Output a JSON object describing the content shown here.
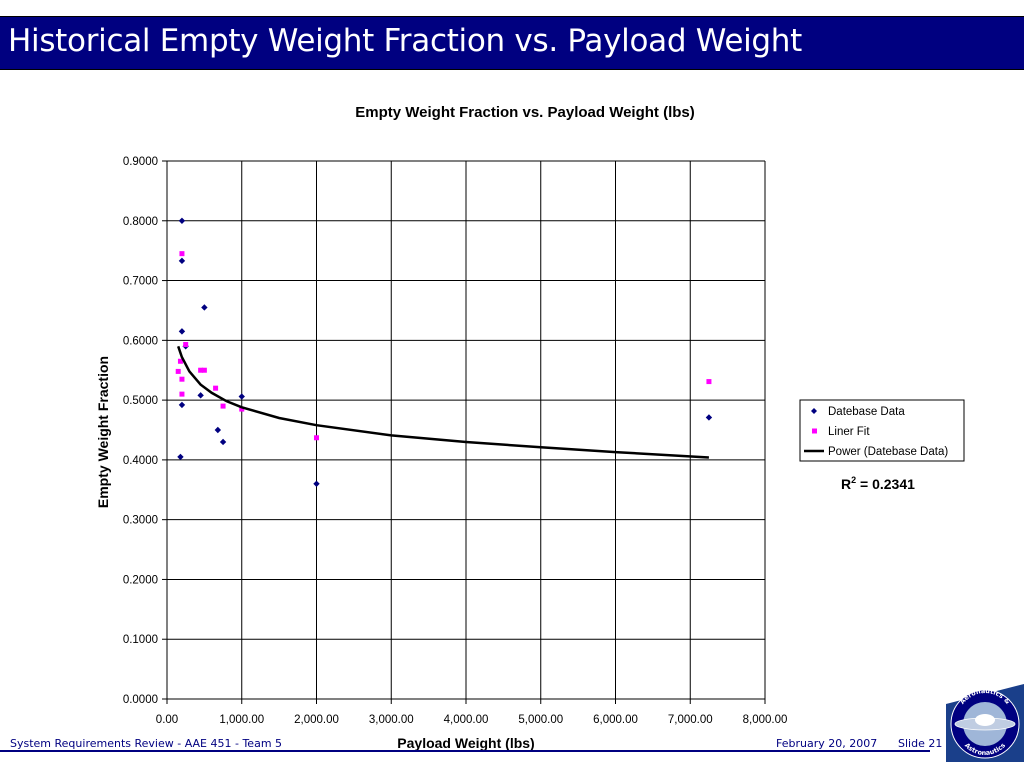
{
  "slide": {
    "title": "Historical Empty Weight Fraction vs. Payload Weight",
    "footer_left": "System Requirements Review - AAE 451 - Team 5",
    "footer_date": "February 20, 2007",
    "footer_slide": "Slide 21",
    "logo_text_top": "Aeronautics &",
    "logo_text_bottom": "Astronautics",
    "colors": {
      "title_bar": "#000080",
      "footer": "#000080"
    }
  },
  "chart_data": {
    "type": "scatter",
    "title": "Empty Weight Fraction vs. Payload Weight (lbs)",
    "xlabel": "Payload Weight (lbs)",
    "ylabel": "Empty Weight Fraction",
    "xlim": [
      0,
      8000
    ],
    "ylim": [
      0,
      0.9
    ],
    "xticks": [
      "0.00",
      "1,000.00",
      "2,000.00",
      "3,000.00",
      "4,000.00",
      "5,000.00",
      "6,000.00",
      "7,000.00",
      "8,000.00"
    ],
    "yticks": [
      "0.0000",
      "0.1000",
      "0.2000",
      "0.3000",
      "0.4000",
      "0.5000",
      "0.6000",
      "0.7000",
      "0.8000",
      "0.9000"
    ],
    "grid": "vertical and horizontal",
    "legend_position": "right",
    "annotation_prefix": "R",
    "annotation_sup": "2",
    "annotation_suffix": " = 0.2341",
    "series": [
      {
        "name": "Datebase Data",
        "marker": "diamond",
        "color": "#000080",
        "points": [
          [
            200,
            0.8
          ],
          [
            200,
            0.733
          ],
          [
            200,
            0.615
          ],
          [
            180,
            0.405
          ],
          [
            200,
            0.492
          ],
          [
            250,
            0.59
          ],
          [
            500,
            0.655
          ],
          [
            450,
            0.508
          ],
          [
            680,
            0.45
          ],
          [
            750,
            0.43
          ],
          [
            1000,
            0.506
          ],
          [
            2000,
            0.36
          ],
          [
            7250,
            0.471
          ]
        ]
      },
      {
        "name": "Liner Fit",
        "marker": "square",
        "color": "#ff00ff",
        "points": [
          [
            200,
            0.745
          ],
          [
            250,
            0.593
          ],
          [
            180,
            0.565
          ],
          [
            150,
            0.548
          ],
          [
            200,
            0.535
          ],
          [
            200,
            0.51
          ],
          [
            450,
            0.55
          ],
          [
            500,
            0.55
          ],
          [
            650,
            0.52
          ],
          [
            750,
            0.49
          ],
          [
            1000,
            0.485
          ],
          [
            2000,
            0.437
          ],
          [
            7250,
            0.531
          ]
        ]
      },
      {
        "name": "Power (Datebase Data)",
        "type": "line",
        "color": "#000000",
        "points": [
          [
            150,
            0.59
          ],
          [
            200,
            0.572
          ],
          [
            300,
            0.548
          ],
          [
            450,
            0.526
          ],
          [
            600,
            0.512
          ],
          [
            800,
            0.498
          ],
          [
            1000,
            0.488
          ],
          [
            1500,
            0.47
          ],
          [
            2000,
            0.458
          ],
          [
            3000,
            0.441
          ],
          [
            4000,
            0.43
          ],
          [
            5000,
            0.421
          ],
          [
            6000,
            0.413
          ],
          [
            7250,
            0.404
          ]
        ]
      }
    ]
  }
}
